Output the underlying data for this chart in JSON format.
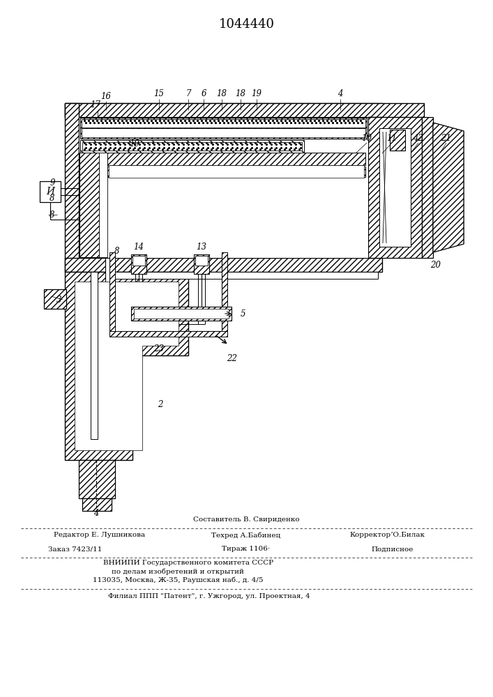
{
  "patent_number": "1044440",
  "bg": "#ffffff",
  "footer": {
    "l1c": "Составитель В. Свириденко",
    "l2l": "Редактор Е. Лушникова",
    "l2c": "Техред А.Бабинец",
    "l2r": "КорректорʼО.Билак",
    "l3l": "Заказ 7423/11",
    "l3c": "Тираж 1106·",
    "l3r": "Подписное",
    "l4": "ВНИИПИ Государственного комитета СССР",
    "l5": "по делам изобретений и открытий",
    "l6": "113035, Москва, Ж-35, Раушская наб., д. 4/5",
    "l7": "Филиал ППП \"Патент\", г. Ужгород, ул. Проектная, 4"
  }
}
